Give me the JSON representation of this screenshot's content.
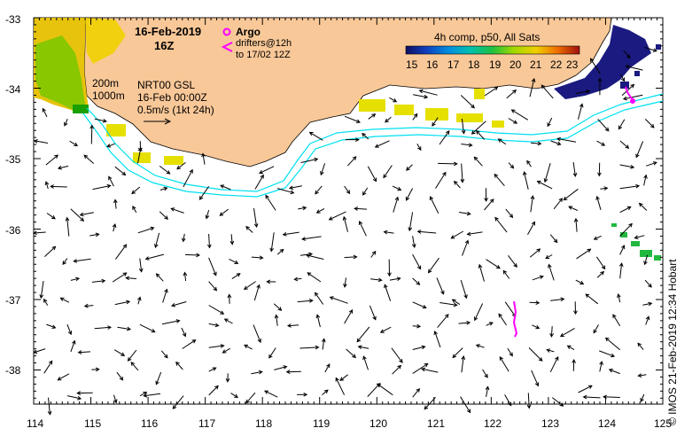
{
  "title": {
    "date": "16-Feb-2019",
    "time": "16Z"
  },
  "legend": {
    "argo_label": "Argo",
    "drifters_line1": "drifters@12h",
    "drifters_line2": "to 17/02 12Z",
    "argo_color": "#ff00ff"
  },
  "colorbar": {
    "title": "4h comp, p50, All Sats",
    "ticks": [
      "15",
      "16",
      "17",
      "18",
      "19",
      "20",
      "21",
      "22",
      "23"
    ]
  },
  "contours": {
    "c200": "200m",
    "c1000": "1000m"
  },
  "current_info": {
    "line1": "NRT00 GSL",
    "line2": "16-Feb 00:00Z",
    "line3": "0.5m/s (1kt 24h)"
  },
  "axes": {
    "lon_ticks": [
      "114",
      "115",
      "116",
      "117",
      "118",
      "119",
      "120",
      "121",
      "122",
      "123",
      "124",
      "125"
    ],
    "lat_ticks": [
      "-33",
      "-34",
      "-35",
      "-36",
      "-37",
      "-38"
    ]
  },
  "credit": "© IMOS 21-Feb-2019 12:34 Hobart",
  "colors": {
    "land": "#f9c898",
    "isobath": "#00e0f0",
    "arrows": "#000000"
  }
}
